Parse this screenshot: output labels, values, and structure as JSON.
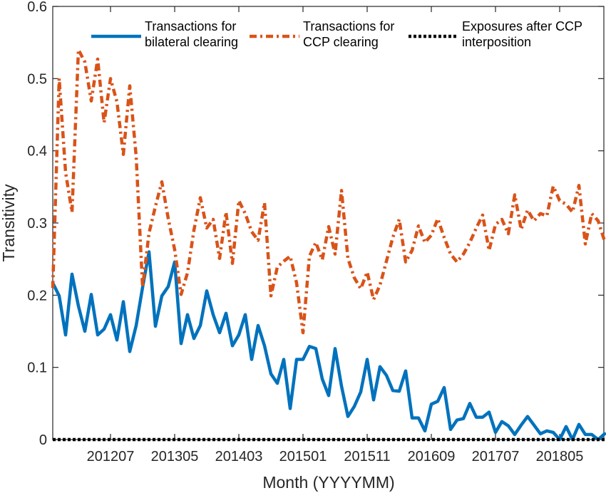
{
  "chart_data": {
    "type": "line",
    "title": "",
    "xlabel": "Month (YYYYMM)",
    "ylabel": "Transitivity",
    "x_start_month": "201110",
    "x_end_month": "201812",
    "xlim_months": [
      0,
      86
    ],
    "ylim": [
      0,
      0.6
    ],
    "yticks": [
      0,
      0.1,
      0.2,
      0.3,
      0.4,
      0.5,
      0.6
    ],
    "ytick_labels": [
      "0",
      "0.1",
      "0.2",
      "0.3",
      "0.4",
      "0.5",
      "0.6"
    ],
    "xticks": [
      {
        "month_index": 9,
        "label": "201207"
      },
      {
        "month_index": 19,
        "label": "201305"
      },
      {
        "month_index": 29,
        "label": "201403"
      },
      {
        "month_index": 39,
        "label": "201501"
      },
      {
        "month_index": 49,
        "label": "201511"
      },
      {
        "month_index": 59,
        "label": "201609"
      },
      {
        "month_index": 69,
        "label": "201707"
      },
      {
        "month_index": 79,
        "label": "201805"
      }
    ],
    "grid": false,
    "legend_position": "top",
    "series": [
      {
        "name": "Transactions for bilateral clearing",
        "legend_lines": [
          "Transactions for",
          "bilateral clearing"
        ],
        "color": "#0072BD",
        "style": "solid",
        "values": [
          0.217,
          0.199,
          0.145,
          0.229,
          0.185,
          0.15,
          0.201,
          0.145,
          0.153,
          0.173,
          0.138,
          0.191,
          0.122,
          0.158,
          0.211,
          0.26,
          0.157,
          0.199,
          0.212,
          0.246,
          0.133,
          0.173,
          0.14,
          0.158,
          0.206,
          0.173,
          0.148,
          0.175,
          0.13,
          0.145,
          0.173,
          0.111,
          0.158,
          0.13,
          0.091,
          0.078,
          0.111,
          0.043,
          0.111,
          0.111,
          0.129,
          0.126,
          0.084,
          0.061,
          0.126,
          0.074,
          0.032,
          0.046,
          0.066,
          0.111,
          0.055,
          0.101,
          0.089,
          0.068,
          0.067,
          0.095,
          0.03,
          0.03,
          0.012,
          0.049,
          0.053,
          0.072,
          0.014,
          0.027,
          0.029,
          0.05,
          0.031,
          0.031,
          0.038,
          0.01,
          0.025,
          0.019,
          0.007,
          0.02,
          0.032,
          0.02,
          0.008,
          0.012,
          0.01,
          0.0,
          0.018,
          0.0,
          0.021,
          0.007,
          0.007,
          0.0,
          0.008
        ]
      },
      {
        "name": "Transactions for CCP clearing",
        "legend_lines": [
          "Transactions for",
          "CCP clearing"
        ],
        "color": "#D95319",
        "style": "dashdot",
        "values": [
          0.21,
          0.5,
          0.37,
          0.315,
          0.54,
          0.523,
          0.469,
          0.527,
          0.439,
          0.5,
          0.468,
          0.395,
          0.49,
          0.392,
          0.211,
          0.286,
          0.323,
          0.357,
          0.306,
          0.263,
          0.201,
          0.231,
          0.29,
          0.335,
          0.293,
          0.305,
          0.251,
          0.315,
          0.244,
          0.331,
          0.313,
          0.288,
          0.276,
          0.328,
          0.199,
          0.239,
          0.247,
          0.254,
          0.217,
          0.148,
          0.254,
          0.273,
          0.249,
          0.295,
          0.257,
          0.345,
          0.251,
          0.224,
          0.209,
          0.232,
          0.194,
          0.214,
          0.247,
          0.28,
          0.305,
          0.246,
          0.262,
          0.296,
          0.273,
          0.283,
          0.306,
          0.28,
          0.257,
          0.246,
          0.257,
          0.273,
          0.293,
          0.311,
          0.262,
          0.298,
          0.305,
          0.285,
          0.339,
          0.291,
          0.318,
          0.303,
          0.313,
          0.31,
          0.351,
          0.331,
          0.326,
          0.315,
          0.352,
          0.271,
          0.313,
          0.303,
          0.275
        ]
      },
      {
        "name": "Exposures after CCP interposition",
        "legend_lines": [
          "Exposures after CCP",
          "interposition"
        ],
        "color": "#000000",
        "style": "dotted",
        "values": [
          0,
          0,
          0,
          0,
          0,
          0,
          0,
          0,
          0,
          0,
          0,
          0,
          0,
          0,
          0,
          0,
          0,
          0,
          0,
          0,
          0,
          0,
          0,
          0,
          0,
          0,
          0,
          0,
          0,
          0,
          0,
          0,
          0,
          0,
          0,
          0,
          0,
          0,
          0,
          0,
          0,
          0,
          0,
          0,
          0,
          0,
          0,
          0,
          0,
          0,
          0,
          0,
          0,
          0,
          0,
          0,
          0,
          0,
          0,
          0,
          0,
          0,
          0,
          0,
          0,
          0,
          0,
          0,
          0,
          0,
          0,
          0,
          0,
          0,
          0,
          0,
          0,
          0,
          0,
          0,
          0,
          0,
          0,
          0,
          0,
          0,
          0
        ]
      }
    ]
  }
}
